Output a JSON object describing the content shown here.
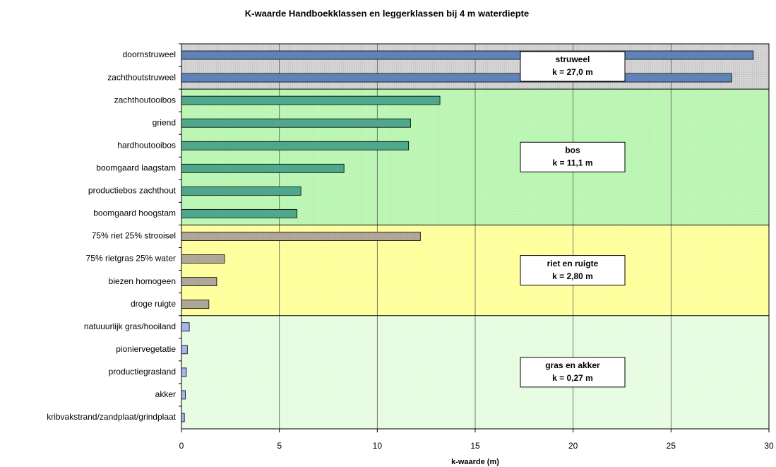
{
  "chart_data": {
    "type": "bar",
    "orientation": "horizontal",
    "title": "K-waarde Handboekklassen en leggerklassen bij 4 m waterdiepte",
    "x_label": "k-waarde (m)",
    "xlim": [
      0,
      30
    ],
    "xticks": [
      0,
      5,
      10,
      15,
      20,
      25,
      30
    ],
    "grid": true,
    "groups": [
      {
        "label": "struweel",
        "k_label": "k = 27,0 m",
        "background": "#d9d9d9",
        "color": "#5f82b8",
        "categories": [
          "doornstruweel",
          "zachthoutstruweel"
        ],
        "values": [
          29.2,
          28.1
        ]
      },
      {
        "label": "bos",
        "k_label": "k = 11,1 m",
        "background": "#b8f5b0",
        "color": "#4fa88c",
        "categories": [
          "zachthoutooibos",
          "griend",
          "hardhoutooibos",
          "boomgaard laagstam",
          "productiebos zachthout",
          "boomgaard hoogstam"
        ],
        "values": [
          13.2,
          11.7,
          11.6,
          8.3,
          6.1,
          5.9
        ]
      },
      {
        "label": "riet en ruigte",
        "k_label": "k = 2,80 m",
        "background": "#ffff99",
        "color": "#b4ab9c",
        "categories": [
          "75% riet 25% strooisel",
          "75% rietgras 25% water",
          "biezen homogeen",
          "droge ruigte"
        ],
        "values": [
          12.2,
          2.2,
          1.8,
          1.4
        ]
      },
      {
        "label": "gras en akker",
        "k_label": "k = 0,27 m",
        "background": "#e6fce0",
        "color": "#a9b3ef",
        "categories": [
          "natuuurlijk gras/hooiland",
          "pioniervegetatie",
          "productiegrasland",
          "akker",
          "kribvakstrand/zandplaat/grindplaat"
        ],
        "values": [
          0.4,
          0.3,
          0.25,
          0.2,
          0.15
        ]
      }
    ]
  }
}
